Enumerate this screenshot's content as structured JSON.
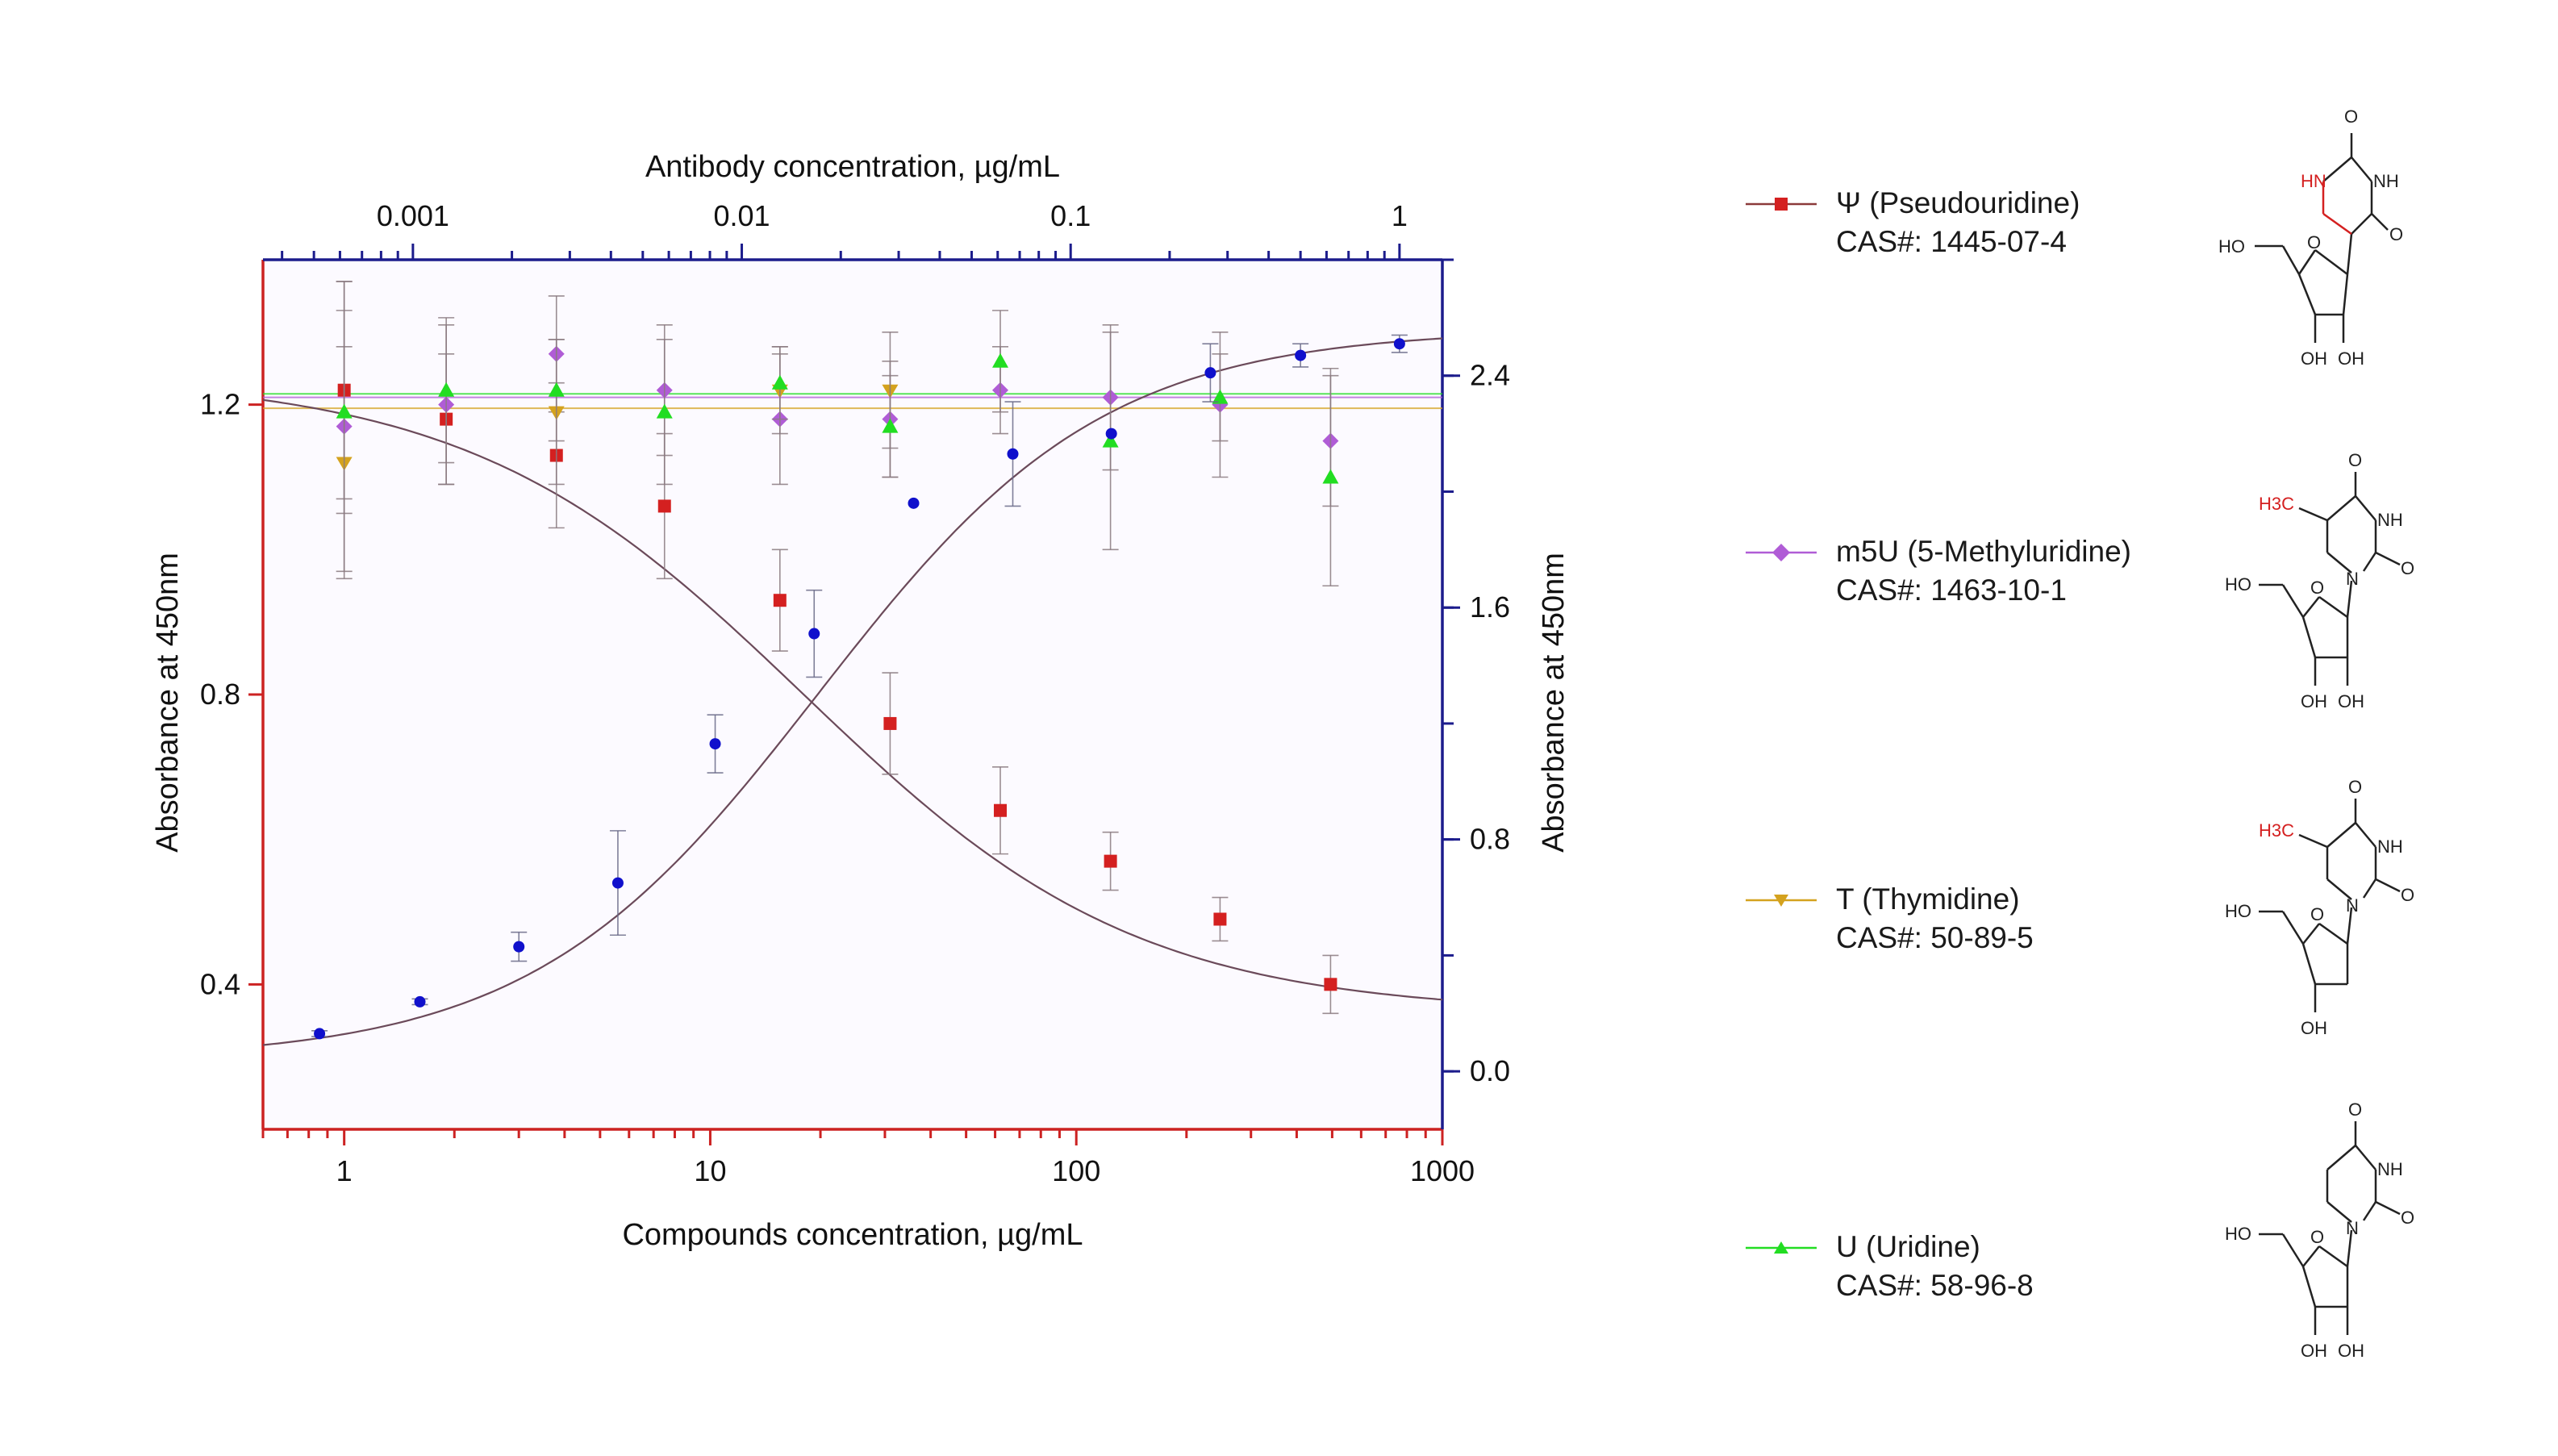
{
  "chart_data": {
    "type": "scatter",
    "x_bottom": {
      "label": "Compounds concentration, µg/mL",
      "scale": "log",
      "range": [
        0.6,
        1000
      ],
      "ticks": [
        1,
        10,
        100,
        1000
      ],
      "tick_labels": [
        "1",
        "10",
        "100",
        "1000"
      ]
    },
    "x_top": {
      "label": "Antibody concentration, µg/mL",
      "scale": "log",
      "range": [
        0.00035,
        1.35
      ],
      "ticks": [
        0.001,
        0.01,
        0.1,
        1
      ],
      "tick_labels": [
        "0.001",
        "0.01",
        "0.1",
        "1"
      ]
    },
    "y_left": {
      "label": "Absorbance at 450nm",
      "range": [
        0.2,
        1.4
      ],
      "ticks": [
        0.4,
        0.8,
        1.2
      ],
      "tick_labels": [
        "0.4",
        "0.8",
        "1.2"
      ]
    },
    "y_right": {
      "label": "Absorbance at 450nm",
      "range": [
        -0.2,
        2.8
      ],
      "ticks": [
        0.0,
        0.8,
        1.6,
        2.4
      ],
      "tick_labels": [
        "0.0",
        "0.8",
        "1.6",
        "2.4"
      ]
    },
    "series": [
      {
        "name": "Ψ (Pseudouridine)",
        "color": "#d42020",
        "marker": "square",
        "axis": "bottom-left",
        "x": [
          1,
          1.9,
          3.8,
          7.5,
          15.5,
          31,
          62,
          124,
          247,
          495
        ],
        "y": [
          1.22,
          1.18,
          1.13,
          1.06,
          0.93,
          0.76,
          0.64,
          0.57,
          0.49,
          0.4
        ],
        "err": [
          0.15,
          0.09,
          0.1,
          0.1,
          0.07,
          0.07,
          0.06,
          0.04,
          0.03,
          0.04
        ],
        "fit": {
          "top": 1.24,
          "bottom": 0.36,
          "ec50": 18,
          "hill": 0.95
        }
      },
      {
        "name": "m5U (5-Methyluridine)",
        "color": "#b05cd6",
        "marker": "diamond",
        "axis": "bottom-left",
        "x": [
          1,
          1.9,
          3.8,
          7.5,
          15.5,
          31,
          62,
          124,
          247,
          495
        ],
        "y": [
          1.17,
          1.2,
          1.27,
          1.22,
          1.18,
          1.18,
          1.22,
          1.21,
          1.2,
          1.15
        ],
        "err": [
          0.2,
          0.11,
          0.08,
          0.09,
          0.09,
          0.08,
          0.06,
          0.1,
          0.1,
          0.09
        ],
        "fit_level": 1.21
      },
      {
        "name": "T (Thymidine)",
        "color": "#d4a21e",
        "marker": "triangle-down",
        "axis": "bottom-left",
        "x": [
          1,
          3.8,
          15.5,
          31
        ],
        "y": [
          1.12,
          1.19,
          1.22,
          1.22
        ],
        "err": [
          0.16,
          0.1,
          0.06,
          0.08
        ],
        "fit_level": 1.195
      },
      {
        "name": "U (Uridine)",
        "color": "#22dd22",
        "marker": "triangle-up",
        "axis": "bottom-left",
        "x": [
          1,
          1.9,
          3.8,
          7.5,
          15.5,
          31,
          62,
          124,
          247,
          495
        ],
        "y": [
          1.19,
          1.22,
          1.22,
          1.19,
          1.23,
          1.17,
          1.26,
          1.15,
          1.21,
          1.1
        ],
        "err": [
          0.14,
          0.1,
          0.07,
          0.1,
          0.05,
          0.07,
          0.07,
          0.15,
          0.06,
          0.15
        ],
        "fit_level": 1.215
      },
      {
        "name": "",
        "color": "#1010cc",
        "marker": "circle",
        "axis": "top-right",
        "x": [
          0.00052,
          0.00105,
          0.0021,
          0.0042,
          0.0083,
          0.0166,
          0.0333,
          0.0667,
          0.133,
          0.266,
          0.5,
          1.0
        ],
        "y": [
          0.13,
          0.24,
          0.43,
          0.65,
          1.13,
          1.51,
          1.96,
          2.13,
          2.2,
          2.41,
          2.47,
          2.51
        ],
        "err": [
          0.01,
          0.01,
          0.05,
          0.18,
          0.1,
          0.15,
          0.0,
          0.18,
          0.0,
          0.1,
          0.04,
          0.03
        ],
        "fit": {
          "bottom": 0.04,
          "top": 2.56,
          "ec50": 0.017,
          "hill": 1.0
        }
      }
    ]
  },
  "legend": [
    {
      "name": "Ψ (Pseudouridine)",
      "cas": "CAS#:  1445-07-4",
      "color": "#d42020",
      "marker": "square"
    },
    {
      "name": "m5U (5-Methyluridine)",
      "cas": "CAS#: 1463-10-1",
      "color": "#b05cd6",
      "marker": "diamond"
    },
    {
      "name": "T (Thymidine)",
      "cas": "CAS#: 50-89-5",
      "color": "#d4a21e",
      "marker": "triangle-down"
    },
    {
      "name": "U (Uridine)",
      "cas": "CAS#: 58-96-8",
      "color": "#22dd22",
      "marker": "triangle-up"
    }
  ],
  "structures": [
    {
      "compound": "Ψ (Pseudouridine)",
      "labels": [
        "O",
        "HN",
        "NH",
        "O",
        "HO",
        "O",
        "OH",
        "OH"
      ],
      "highlight_color": "#d42020"
    },
    {
      "compound": "m5U (5-Methyluridine)",
      "labels": [
        "O",
        "H3C",
        "NH",
        "N",
        "O",
        "HO",
        "O",
        "OH",
        "OH"
      ],
      "highlight_color": "#d42020"
    },
    {
      "compound": "T (Thymidine)",
      "labels": [
        "O",
        "H3C",
        "NH",
        "N",
        "O",
        "HO",
        "O",
        "OH"
      ],
      "highlight_color": "#d42020"
    },
    {
      "compound": "U (Uridine)",
      "labels": [
        "O",
        "NH",
        "N",
        "O",
        "HO",
        "O",
        "OH",
        "OH"
      ],
      "highlight_color": "#d42020"
    }
  ]
}
